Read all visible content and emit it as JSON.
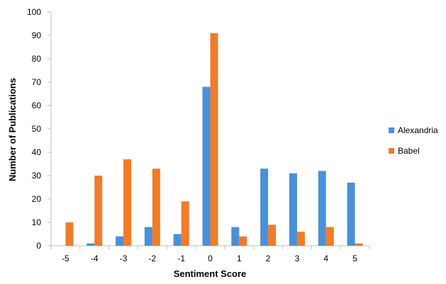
{
  "chart_data": {
    "type": "bar",
    "title": "",
    "xlabel": "Sentiment Score",
    "ylabel": "Number of Publications",
    "categories": [
      "-5",
      "-4",
      "-3",
      "-2",
      "-1",
      "0",
      "1",
      "2",
      "3",
      "4",
      "5"
    ],
    "series": [
      {
        "name": "Alexandria",
        "color": "#4a90d9",
        "values": [
          0,
          1,
          4,
          8,
          5,
          68,
          8,
          33,
          31,
          32,
          27
        ]
      },
      {
        "name": "Babel",
        "color": "#f07c2a",
        "values": [
          10,
          30,
          37,
          33,
          19,
          91,
          4,
          9,
          6,
          8,
          1
        ]
      }
    ],
    "ylim": [
      0,
      100
    ],
    "yticks": [
      "0",
      "10",
      "20",
      "30",
      "40",
      "50",
      "60",
      "70",
      "80",
      "90",
      "100"
    ],
    "grid": false,
    "legend": "right"
  }
}
